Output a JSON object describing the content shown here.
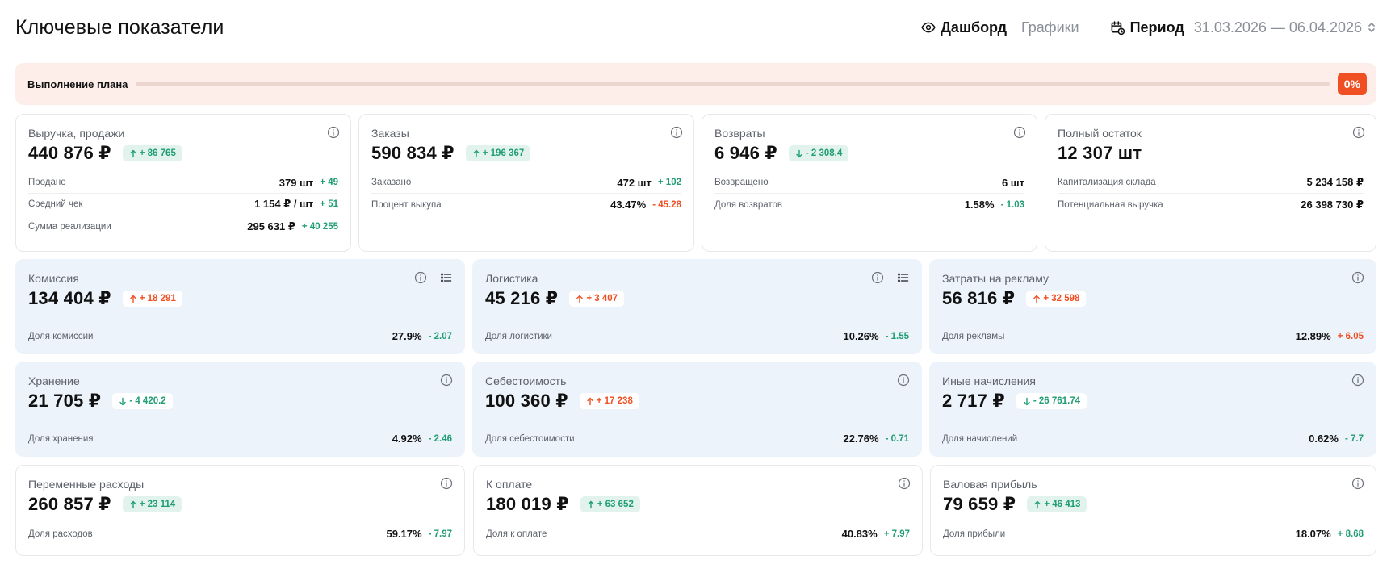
{
  "header": {
    "title": "Ключевые показатели",
    "tab_dashboard": "Дашборд",
    "tab_charts": "Графики",
    "period_label": "Период",
    "period_value": "31.03.2026 — 06.04.2026"
  },
  "plan": {
    "label": "Выполнение плана",
    "percent": "0%",
    "progress_fraction": 0
  },
  "colors": {
    "accent_orange": "#f04e23",
    "positive_green": "#1f9e72",
    "plan_bg": "#fdeeea",
    "blue_card_bg": "#edf3fb"
  },
  "icons": {
    "tab_dashboard": "eye-icon",
    "period": "calendar-icon",
    "period_toggle": "chevron-updown-icon",
    "card_info": "info-icon",
    "card_details": "list-icon",
    "delta_up": "arrow-up-icon",
    "delta_down": "arrow-down-icon"
  },
  "cards": {
    "revenue": {
      "title": "Выручка, продажи",
      "value": "440 876 ₽",
      "badge": "+ 86 765",
      "rows": [
        {
          "label": "Продано",
          "value": "379 шт",
          "delta": "+ 49"
        },
        {
          "label": "Средний чек",
          "value": "1 154 ₽ / шт",
          "delta": "+ 51"
        },
        {
          "label": "Сумма реализации",
          "value": "295 631 ₽",
          "delta": "+ 40 255"
        }
      ]
    },
    "orders": {
      "title": "Заказы",
      "value": "590 834 ₽",
      "badge": "+ 196 367",
      "rows": [
        {
          "label": "Заказано",
          "value": "472 шт",
          "delta": "+ 102"
        },
        {
          "label": "Процент выкупа",
          "value": "43.47%",
          "delta": "- 45.28"
        }
      ]
    },
    "returns": {
      "title": "Возвраты",
      "value": "6 946 ₽",
      "badge": "- 2 308.4",
      "rows": [
        {
          "label": "Возвращено",
          "value": "6 шт",
          "delta": ""
        },
        {
          "label": "Доля возвратов",
          "value": "1.58%",
          "delta": "- 1.03"
        }
      ]
    },
    "stock": {
      "title": "Полный остаток",
      "value": "12 307 шт",
      "rows": [
        {
          "label": "Капитализация склада",
          "value": "5 234 158 ₽",
          "delta": ""
        },
        {
          "label": "Потенциальная выручка",
          "value": "26 398 730 ₽",
          "delta": ""
        }
      ]
    },
    "commission": {
      "title": "Комиссия",
      "value": "134 404 ₽",
      "badge": "+ 18 291",
      "row": {
        "label": "Доля комиссии",
        "value": "27.9%",
        "delta": "- 2.07"
      }
    },
    "logistics": {
      "title": "Логистика",
      "value": "45 216 ₽",
      "badge": "+ 3 407",
      "row": {
        "label": "Доля логистики",
        "value": "10.26%",
        "delta": "- 1.55"
      }
    },
    "ads": {
      "title": "Затраты на рекламу",
      "value": "56 816 ₽",
      "badge": "+ 32 598",
      "row": {
        "label": "Доля рекламы",
        "value": "12.89%",
        "delta": "+ 6.05"
      }
    },
    "storage": {
      "title": "Хранение",
      "value": "21 705 ₽",
      "badge": "- 4 420.2",
      "row": {
        "label": "Доля хранения",
        "value": "4.92%",
        "delta": "- 2.46"
      }
    },
    "cost": {
      "title": "Себестоимость",
      "value": "100 360 ₽",
      "badge": "+ 17 238",
      "row": {
        "label": "Доля себестоимости",
        "value": "22.76%",
        "delta": "- 0.71"
      }
    },
    "other": {
      "title": "Иные начисления",
      "value": "2 717 ₽",
      "badge": "- 26 761.74",
      "row": {
        "label": "Доля начислений",
        "value": "0.62%",
        "delta": "- 7.7"
      }
    },
    "variable": {
      "title": "Переменные расходы",
      "value": "260 857 ₽",
      "badge": "+ 23 114",
      "row": {
        "label": "Доля расходов",
        "value": "59.17%",
        "delta": "- 7.97"
      }
    },
    "payout": {
      "title": "К оплате",
      "value": "180 019 ₽",
      "badge": "+ 63 652",
      "row": {
        "label": "Доля к оплате",
        "value": "40.83%",
        "delta": "+ 7.97"
      }
    },
    "gross": {
      "title": "Валовая прибыль",
      "value": "79 659 ₽",
      "badge": "+ 46 413",
      "row": {
        "label": "Доля прибыли",
        "value": "18.07%",
        "delta": "+ 8.68"
      }
    }
  }
}
